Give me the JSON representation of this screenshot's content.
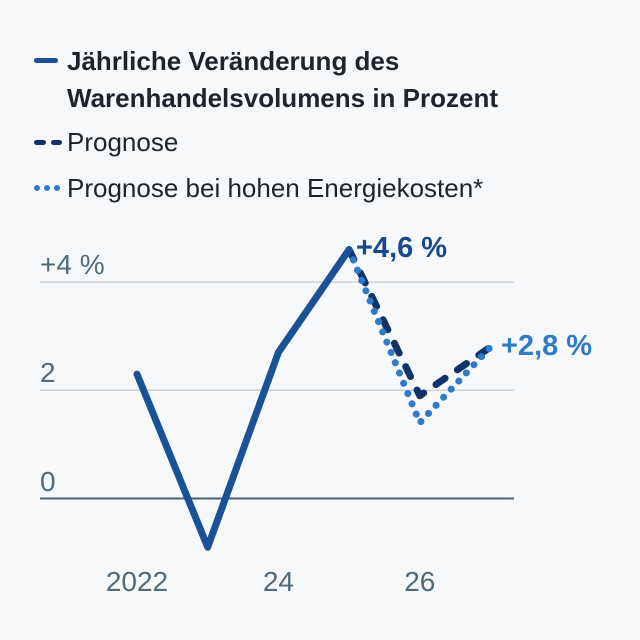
{
  "legend": {
    "items": [
      {
        "label": "Jährliche Veränderung des Warenhandelsvolumens in Prozent",
        "style": "solid",
        "color": "#1b5295"
      },
      {
        "label": "Prognose",
        "style": "dashed",
        "color": "#113368"
      },
      {
        "label": "Prognose bei hohen Energiekosten*",
        "style": "dotted",
        "color": "#2e7bc9"
      }
    ]
  },
  "chart_data": {
    "type": "line",
    "title": "Jährliche Veränderung des Warenhandelsvolumens in Prozent",
    "unit": "%",
    "grid": "horizontal gridlines at +4, 2 and 0; zero line emphasized",
    "xlim": [
      2021.6,
      2027.3
    ],
    "ylim": [
      -1.6,
      5.1
    ],
    "x_ticks": [
      {
        "year": 2022,
        "label": "2022"
      },
      {
        "year": 2024,
        "label": "24"
      },
      {
        "year": 2026,
        "label": "26"
      }
    ],
    "y_ticks": [
      {
        "value": 4,
        "label": "+4 %"
      },
      {
        "value": 2,
        "label": "2"
      },
      {
        "value": 0,
        "label": "0"
      }
    ],
    "series": [
      {
        "name": "Jährliche Veränderung des Warenhandelsvolumens in Prozent",
        "style": "solid",
        "color": "#1b5295",
        "points": [
          [
            2022,
            2.3
          ],
          [
            2023,
            -0.9
          ],
          [
            2024,
            2.7
          ],
          [
            2025,
            4.6
          ]
        ]
      },
      {
        "name": "Prognose",
        "style": "dashed",
        "color": "#113368",
        "points": [
          [
            2025,
            4.6
          ],
          [
            2026,
            1.9
          ],
          [
            2027,
            2.8
          ]
        ]
      },
      {
        "name": "Prognose bei hohen Energiekosten*",
        "style": "dotted",
        "color": "#2e7bc9",
        "points": [
          [
            2025,
            4.6
          ],
          [
            2026,
            1.4
          ],
          [
            2027,
            2.8
          ]
        ]
      }
    ],
    "annotations": [
      {
        "text": "+4,6 %",
        "year": 2025,
        "value": 4.6,
        "color": "#16498e"
      },
      {
        "text": "+2,8 %",
        "year": 2027,
        "value": 2.8,
        "color": "#2e7bc9"
      }
    ]
  }
}
